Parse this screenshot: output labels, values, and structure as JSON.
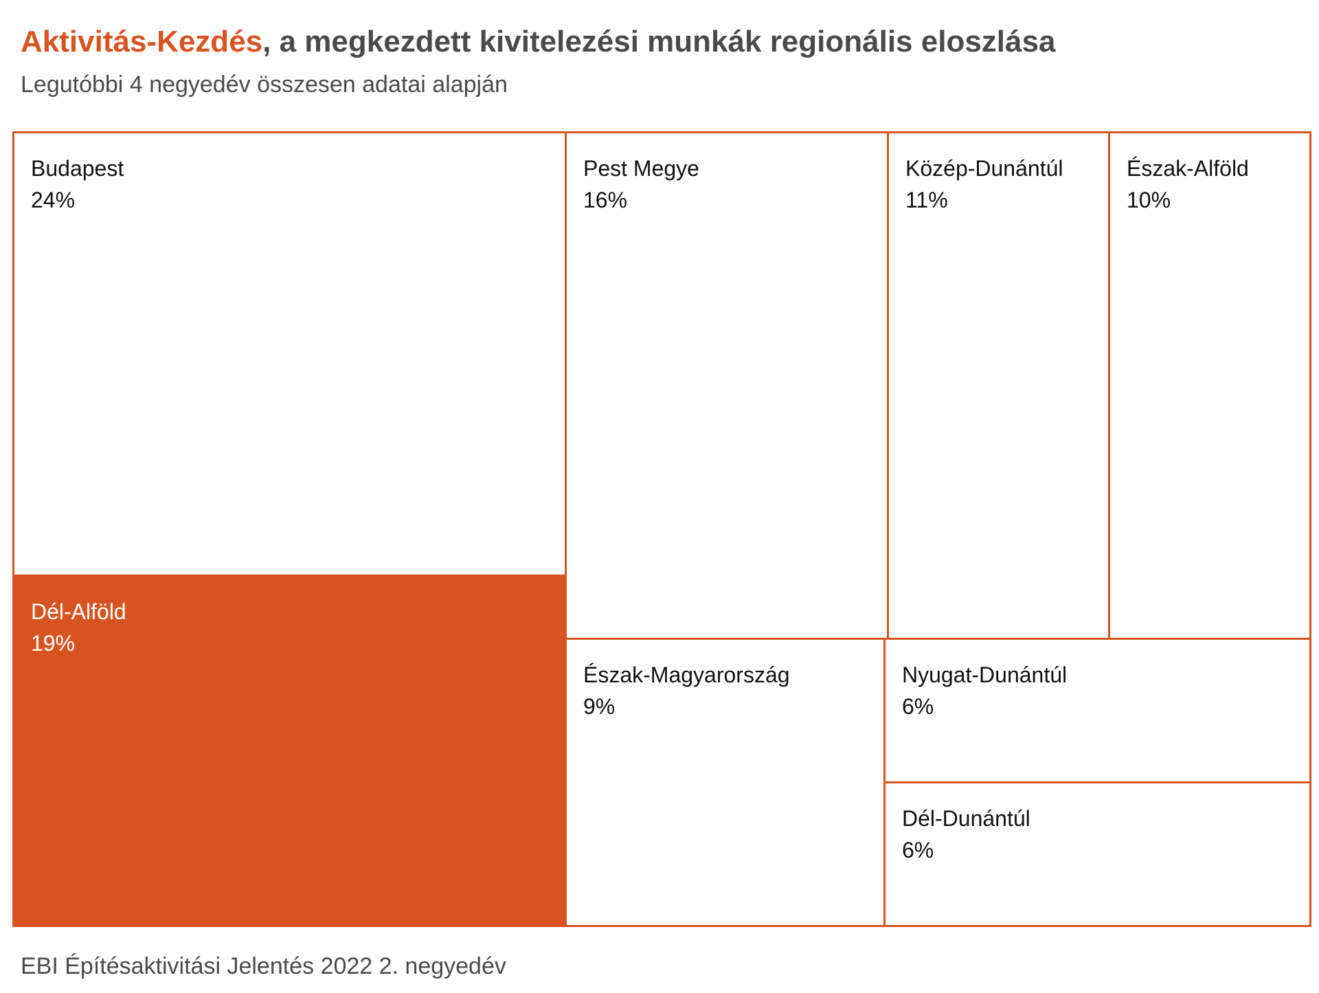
{
  "header": {
    "title_highlight": "Aktivitás-Kezdés",
    "title_rest": ", a megkezdett kivitelezési munkák regionális eloszlása",
    "subtitle": "Legutóbbi 4 negyedév összesen adatai alapján"
  },
  "footer": {
    "source": "EBI Építésaktivitási Jelentés 2022 2. negyedév"
  },
  "colors": {
    "accent": "#d75421",
    "text": "#4a4a4a",
    "tile_fill": "#ffffff"
  },
  "chart_data": {
    "type": "treemap",
    "unit": "%",
    "highlighted": "Dél-Alföld",
    "items": [
      {
        "name": "Budapest",
        "value": 24,
        "label": "24%"
      },
      {
        "name": "Dél-Alföld",
        "value": 19,
        "label": "19%"
      },
      {
        "name": "Pest Megye",
        "value": 16,
        "label": "16%"
      },
      {
        "name": "Közép-Dunántúl",
        "value": 11,
        "label": "11%"
      },
      {
        "name": "Észak-Alföld",
        "value": 10,
        "label": "10%"
      },
      {
        "name": "Észak-Magyarország",
        "value": 9,
        "label": "9%"
      },
      {
        "name": "Nyugat-Dunántúl",
        "value": 6,
        "label": "6%"
      },
      {
        "name": "Dél-Dunántúl",
        "value": 6,
        "label": "6%"
      }
    ]
  }
}
